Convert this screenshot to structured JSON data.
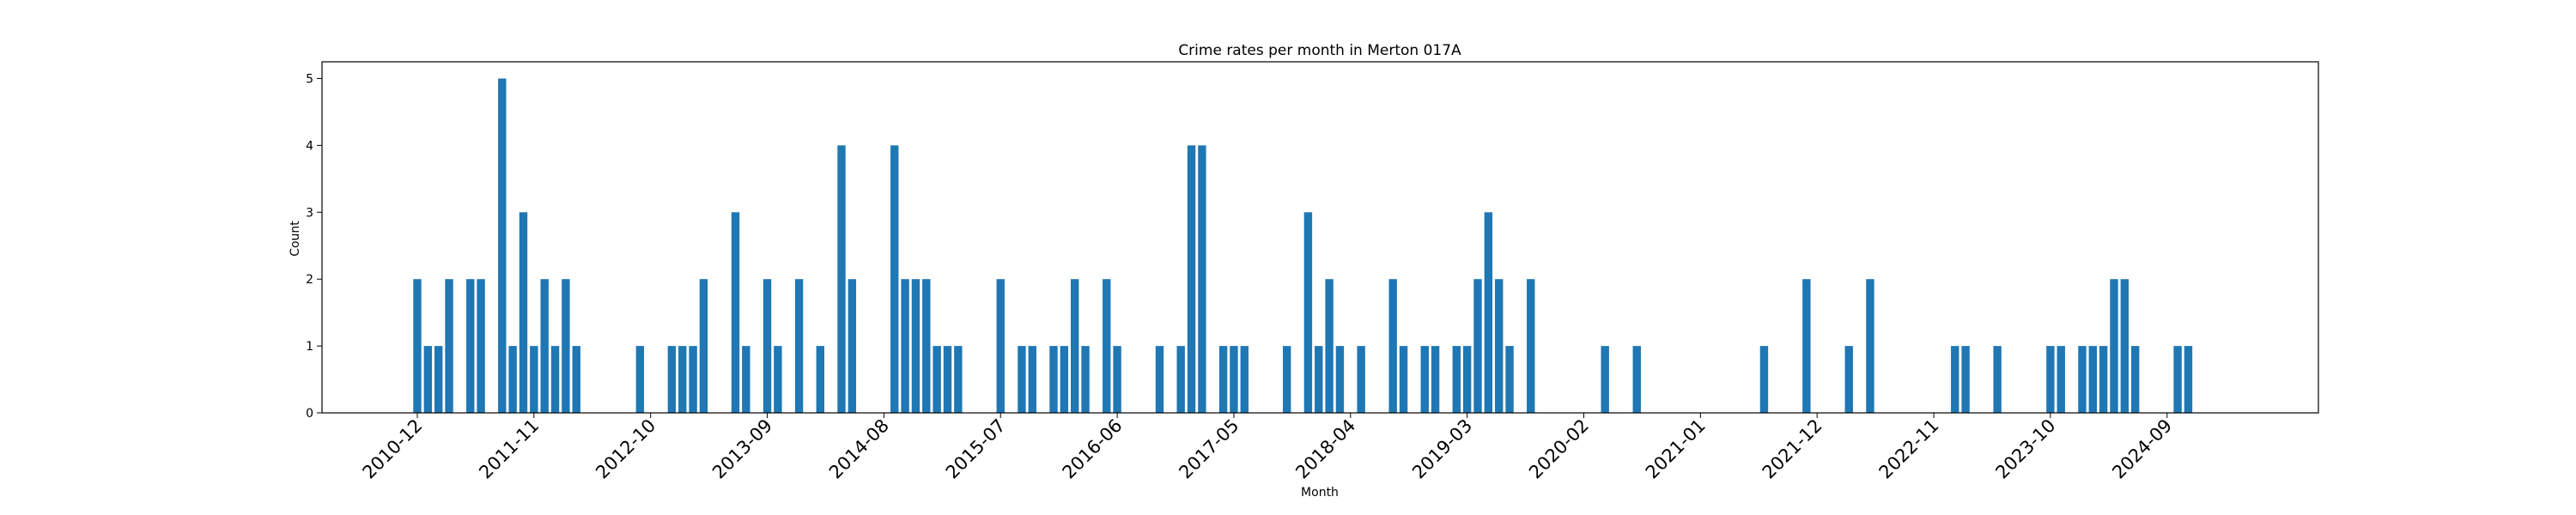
{
  "chart_data": {
    "type": "bar",
    "title": "Crime rates per month in Merton 017A",
    "xlabel": "Month",
    "ylabel": "Count",
    "ylim": [
      0,
      5.25
    ],
    "yticks": [
      0,
      1,
      2,
      3,
      4,
      5
    ],
    "xtick_labels": [
      "2010-12",
      "2011-11",
      "2012-10",
      "2013-09",
      "2014-08",
      "2015-07",
      "2016-06",
      "2017-05",
      "2018-04",
      "2019-03",
      "2020-02",
      "2021-01",
      "2021-12",
      "2022-11",
      "2023-10",
      "2024-09"
    ],
    "grid": false,
    "bar_color": "#1f77b4",
    "categories": [
      "2010-12",
      "2011-01",
      "2011-02",
      "2011-03",
      "2011-05",
      "2011-06",
      "2011-08",
      "2011-09",
      "2011-10",
      "2011-11",
      "2011-12",
      "2012-01",
      "2012-02",
      "2012-03",
      "2012-09",
      "2012-12",
      "2013-01",
      "2013-02",
      "2013-03",
      "2013-06",
      "2013-07",
      "2013-09",
      "2013-10",
      "2013-12",
      "2014-02",
      "2014-04",
      "2014-05",
      "2014-09",
      "2014-10",
      "2014-11",
      "2014-12",
      "2015-01",
      "2015-02",
      "2015-03",
      "2015-07",
      "2015-09",
      "2015-10",
      "2015-12",
      "2016-01",
      "2016-02",
      "2016-03",
      "2016-05",
      "2016-06",
      "2016-10",
      "2016-12",
      "2017-01",
      "2017-02",
      "2017-04",
      "2017-05",
      "2017-06",
      "2017-10",
      "2017-12",
      "2018-01",
      "2018-02",
      "2018-03",
      "2018-05",
      "2018-08",
      "2018-09",
      "2018-11",
      "2018-12",
      "2019-02",
      "2019-03",
      "2019-04",
      "2019-05",
      "2019-06",
      "2019-07",
      "2019-09",
      "2020-04",
      "2020-07",
      "2021-07",
      "2021-11",
      "2022-03",
      "2022-05",
      "2023-01",
      "2023-02",
      "2023-05",
      "2023-10",
      "2023-11",
      "2024-01",
      "2024-02",
      "2024-03",
      "2024-04",
      "2024-05",
      "2024-06",
      "2024-10",
      "2024-11"
    ],
    "values": [
      2,
      1,
      1,
      2,
      2,
      2,
      5,
      1,
      3,
      1,
      2,
      1,
      2,
      1,
      1,
      1,
      1,
      1,
      2,
      3,
      1,
      2,
      1,
      2,
      1,
      4,
      2,
      4,
      2,
      2,
      2,
      1,
      1,
      1,
      2,
      1,
      1,
      1,
      1,
      2,
      1,
      2,
      1,
      1,
      1,
      4,
      4,
      1,
      1,
      1,
      1,
      3,
      1,
      2,
      1,
      1,
      2,
      1,
      1,
      1,
      1,
      1,
      2,
      3,
      2,
      1,
      2,
      1,
      1,
      1,
      2,
      1,
      2,
      1,
      1,
      1,
      1,
      1,
      1,
      1,
      1,
      2,
      2,
      1,
      1,
      1
    ]
  }
}
